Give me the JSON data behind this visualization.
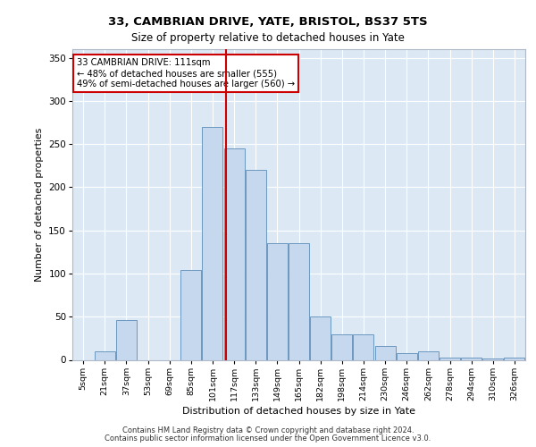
{
  "title1": "33, CAMBRIAN DRIVE, YATE, BRISTOL, BS37 5TS",
  "title2": "Size of property relative to detached houses in Yate",
  "xlabel": "Distribution of detached houses by size in Yate",
  "ylabel": "Number of detached properties",
  "footer1": "Contains HM Land Registry data © Crown copyright and database right 2024.",
  "footer2": "Contains public sector information licensed under the Open Government Licence v3.0.",
  "annotation_line1": "33 CAMBRIAN DRIVE: 111sqm",
  "annotation_line2": "← 48% of detached houses are smaller (555)",
  "annotation_line3": "49% of semi-detached houses are larger (560) →",
  "categories": [
    "5sqm",
    "21sqm",
    "37sqm",
    "53sqm",
    "69sqm",
    "85sqm",
    "101sqm",
    "117sqm",
    "133sqm",
    "149sqm",
    "165sqm",
    "182sqm",
    "198sqm",
    "214sqm",
    "230sqm",
    "246sqm",
    "262sqm",
    "278sqm",
    "294sqm",
    "310sqm",
    "326sqm"
  ],
  "values": [
    0,
    10,
    46,
    0,
    0,
    104,
    270,
    245,
    220,
    135,
    135,
    50,
    30,
    30,
    16,
    8,
    10,
    3,
    3,
    2,
    3
  ],
  "bar_color": "#c5d8ee",
  "bar_edge_color": "#5b8db8",
  "vline_color": "#cc0000",
  "vline_bin_index": 6,
  "annotation_box_color": "#cc0000",
  "plot_bg": "#dce9f5",
  "ylim": [
    0,
    360
  ],
  "yticks": [
    0,
    50,
    100,
    150,
    200,
    250,
    300,
    350
  ],
  "figsize": [
    6.0,
    5.0
  ],
  "dpi": 100
}
